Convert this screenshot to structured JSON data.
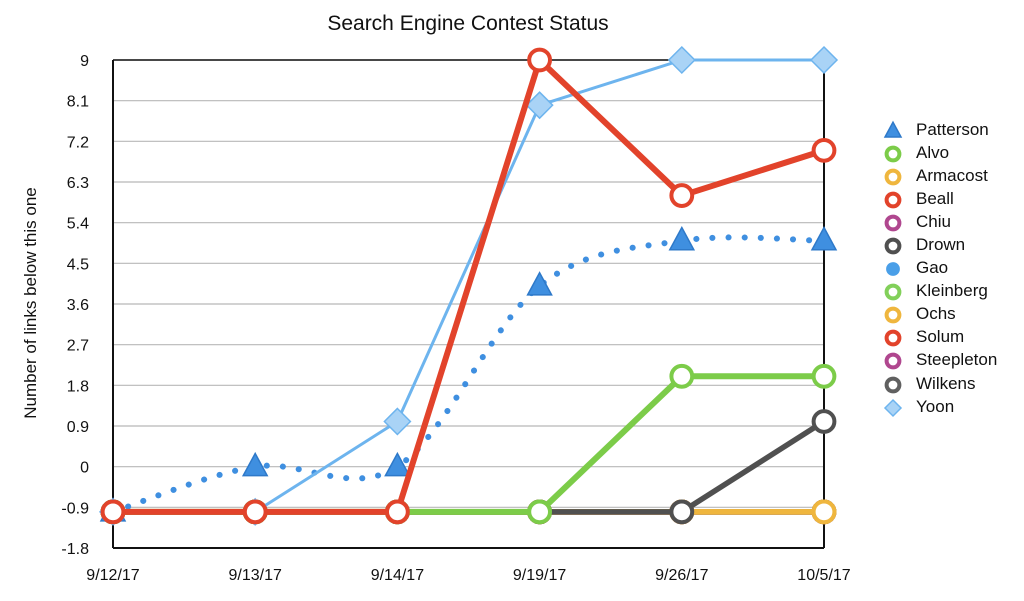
{
  "chart_data": {
    "type": "line",
    "title": "Search Engine Contest Status",
    "ylabel": "Number of links below this one",
    "xlabel": "",
    "categories": [
      "9/12/17",
      "9/13/17",
      "9/14/17",
      "9/19/17",
      "9/26/17",
      "10/5/17"
    ],
    "ylim": [
      -1.8,
      9
    ],
    "yticks": [
      "9",
      "8.1",
      "7.2",
      "6.3",
      "5.4",
      "4.5",
      "3.6",
      "2.7",
      "1.8",
      "0.9",
      "0",
      "-0.9",
      "-1.8"
    ],
    "grid": true,
    "legend_position": "right",
    "series": [
      {
        "name": "Patterson",
        "color": "#3f8fe0",
        "marker": "triangle",
        "line": "dotted",
        "values": [
          -1,
          0,
          0,
          4,
          5,
          5
        ]
      },
      {
        "name": "Alvo",
        "color": "#7ccc49",
        "marker": "open-circle",
        "line": "solid",
        "values": [
          -1,
          -1,
          -1,
          -1,
          2,
          2
        ]
      },
      {
        "name": "Armacost",
        "color": "#efb63e",
        "marker": "open-circle",
        "line": "solid",
        "values": [
          -1,
          -1,
          -1,
          -1,
          -1,
          -1
        ]
      },
      {
        "name": "Beall",
        "color": "#e2432b",
        "marker": "open-circle",
        "line": "solid",
        "values": [
          -1,
          -1,
          -1,
          9,
          6,
          7
        ]
      },
      {
        "name": "Chiu",
        "color": "#b0478f",
        "marker": "open-circle",
        "line": "solid",
        "values": [
          -1,
          -1,
          -1,
          -1,
          -1,
          -1
        ]
      },
      {
        "name": "Drown",
        "color": "#505050",
        "marker": "open-circle",
        "line": "solid",
        "values": [
          -1,
          -1,
          -1,
          -1,
          -1,
          1
        ]
      },
      {
        "name": "Gao",
        "color": "#4a9fe8",
        "marker": "filled-circle",
        "line": "solid",
        "values": [
          -1,
          -1,
          -1,
          -1,
          -1,
          -1
        ]
      },
      {
        "name": "Kleinberg",
        "color": "#82d05a",
        "marker": "open-circle",
        "line": "solid",
        "values": [
          -1,
          -1,
          -1,
          -1,
          -1,
          -1
        ]
      },
      {
        "name": "Ochs",
        "color": "#efb63e",
        "marker": "open-circle",
        "line": "solid",
        "values": [
          -1,
          -1,
          -1,
          -1,
          -1,
          -1
        ]
      },
      {
        "name": "Solum",
        "color": "#e2432b",
        "marker": "open-circle",
        "line": "solid",
        "values": [
          -1,
          -1,
          -1,
          -1,
          -1,
          -1
        ]
      },
      {
        "name": "Steepleton",
        "color": "#b0478f",
        "marker": "open-circle",
        "line": "solid",
        "values": [
          -1,
          -1,
          -1,
          -1,
          -1,
          -1
        ]
      },
      {
        "name": "Wilkens",
        "color": "#606060",
        "marker": "open-circle",
        "line": "solid",
        "values": [
          -1,
          -1,
          -1,
          -1,
          -1,
          -1
        ]
      },
      {
        "name": "Yoon",
        "color": "#6db4ee",
        "marker": "diamond",
        "line": "solid",
        "values": [
          -1,
          -1,
          1,
          8,
          9,
          9
        ]
      }
    ]
  }
}
